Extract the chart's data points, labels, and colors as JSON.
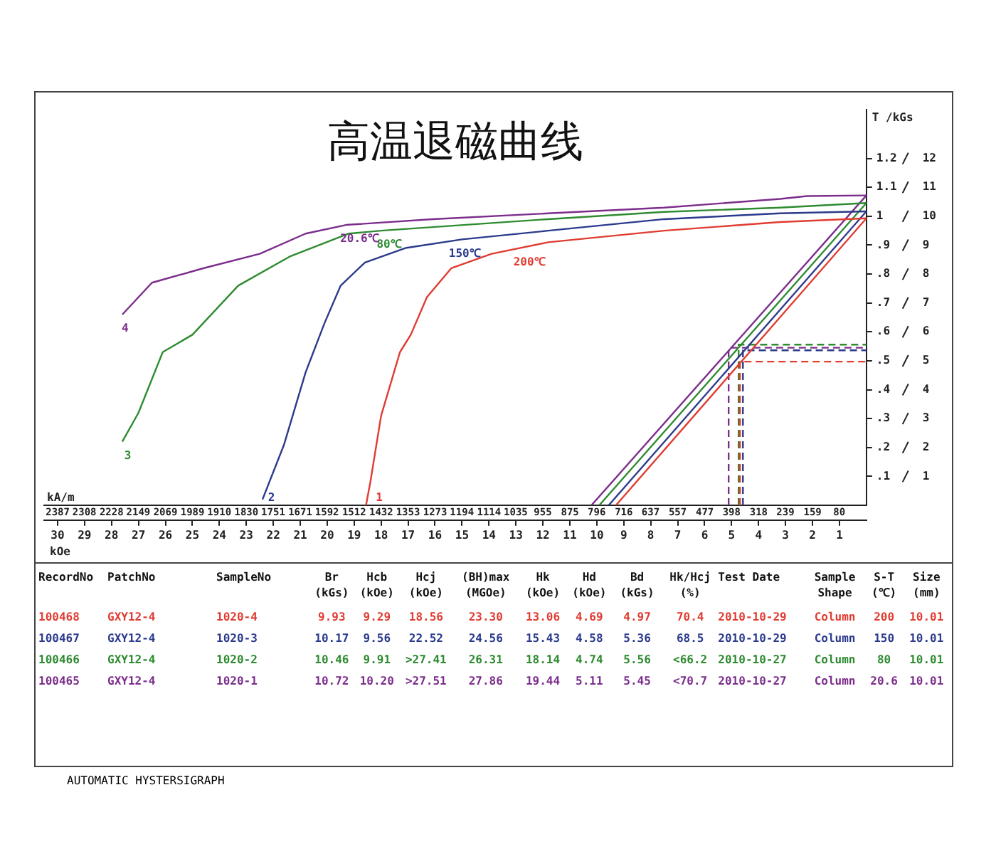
{
  "chart_data": {
    "type": "line",
    "title": "高温退磁曲线",
    "xlabel": "kOe",
    "x2label": "kA/m",
    "ylabel": "T /kGs",
    "xlim": [
      30.5,
      0
    ],
    "xticks": [
      1,
      2,
      3,
      4,
      5,
      6,
      7,
      8,
      9,
      10,
      11,
      12,
      13,
      14,
      15,
      16,
      17,
      18,
      19,
      20,
      21,
      22,
      23,
      24,
      25,
      26,
      27,
      28,
      29,
      30
    ],
    "x2lim": [
      2427,
      0
    ],
    "x2ticks": [
      2387,
      2308,
      2228,
      2149,
      2069,
      1989,
      1910,
      1830,
      1751,
      1671,
      1592,
      1512,
      1432,
      1353,
      1273,
      1194,
      1114,
      1035,
      955,
      875,
      796,
      716,
      637,
      557,
      477,
      398,
      318,
      239,
      159,
      80
    ],
    "ylim": [
      0,
      1.37
    ],
    "yticks": [
      {
        "value": 0.1,
        "label": ".1"
      },
      {
        "value": 0.2,
        "label": ".2"
      },
      {
        "value": 0.3,
        "label": ".3"
      },
      {
        "value": 0.4,
        "label": ".4"
      },
      {
        "value": 0.5,
        "label": ".5"
      },
      {
        "value": 0.6,
        "label": ".6"
      },
      {
        "value": 0.7,
        "label": ".7"
      },
      {
        "value": 0.8,
        "label": ".8"
      },
      {
        "value": 0.9,
        "label": ".9"
      },
      1,
      1.1,
      1.2
    ],
    "y2lim": [
      0,
      13.7
    ],
    "y2ticks": [
      1,
      2,
      3,
      4,
      5,
      6,
      7,
      8,
      9,
      10,
      11,
      12
    ],
    "grid": false,
    "legend": false,
    "marker": "none",
    "line_style": "solid",
    "series": [
      {
        "type": "line",
        "color": "#e03c31",
        "x": [
          0,
          3.2,
          7.5,
          11.8,
          13.9,
          15.4,
          16.3,
          16.9,
          17.3,
          18.0,
          18.4,
          18.56
        ],
        "values": [
          0.993,
          0.98,
          0.95,
          0.91,
          0.87,
          0.82,
          0.72,
          0.59,
          0.53,
          0.31,
          0.08,
          0
        ]
      },
      {
        "type": "line",
        "color": "#2b3a8c",
        "x": [
          0,
          3.2,
          7.5,
          11.8,
          15.0,
          17.1,
          18.6,
          19.5,
          20.1,
          20.8,
          21.6,
          22.4
        ],
        "values": [
          1.017,
          1.01,
          0.99,
          0.95,
          0.92,
          0.89,
          0.84,
          0.76,
          0.63,
          0.46,
          0.21,
          0.02
        ]
      },
      {
        "type": "line",
        "color": "#2e8b30",
        "x": [
          0,
          3.2,
          7.5,
          11.8,
          18.0,
          19.2,
          21.4,
          23.3,
          25.0,
          26.1,
          27.0,
          27.6
        ],
        "values": [
          1.046,
          1.03,
          1.015,
          0.99,
          0.95,
          0.94,
          0.86,
          0.76,
          0.59,
          0.53,
          0.32,
          0.22
        ]
      },
      {
        "type": "line",
        "color": "#7b2d8b",
        "x": [
          0,
          2.2,
          3.2,
          7.5,
          11.8,
          16.1,
          19.3,
          20.8,
          22.5,
          24.6,
          26.5,
          27.6
        ],
        "values": [
          1.072,
          1.07,
          1.06,
          1.03,
          1.01,
          0.99,
          0.97,
          0.94,
          0.87,
          0.82,
          0.77,
          0.66
        ]
      },
      {
        "type": "line",
        "color": "#e03c31",
        "x": [
          0,
          9.29
        ],
        "values": [
          0.993,
          0
        ]
      },
      {
        "type": "line",
        "color": "#2b3a8c",
        "x": [
          0,
          9.56
        ],
        "values": [
          1.017,
          0
        ]
      },
      {
        "type": "line",
        "color": "#2e8b30",
        "x": [
          0,
          9.91
        ],
        "values": [
          1.046,
          0
        ]
      },
      {
        "type": "line",
        "color": "#7b2d8b",
        "x": [
          0,
          10.2
        ],
        "values": [
          1.072,
          0
        ]
      },
      {
        "type": "line",
        "color": "#e03c31",
        "line_style": "dashed",
        "x": [
          4.69,
          4.69,
          0
        ],
        "values": [
          0,
          0.497,
          0.497
        ]
      },
      {
        "type": "line",
        "color": "#2b3a8c",
        "line_style": "dashed",
        "x": [
          4.58,
          4.58,
          0
        ],
        "values": [
          0,
          0.536,
          0.536
        ]
      },
      {
        "type": "line",
        "color": "#2e8b30",
        "line_style": "dashed",
        "x": [
          4.74,
          4.74,
          0
        ],
        "values": [
          0,
          0.556,
          0.556
        ]
      },
      {
        "type": "line",
        "color": "#7b2d8b",
        "line_style": "dashed",
        "x": [
          5.11,
          5.11,
          0
        ],
        "values": [
          0,
          0.545,
          0.545
        ]
      }
    ],
    "annotations": [
      "RecordNo",
      "PatchNo",
      "SampleNo",
      "Br\n(kGs)",
      "Hcb\n(kOe)",
      "Hcj\n(kOe)",
      "(BH)max\n(MGOe)",
      "Hk\n(kOe)",
      "Hd\n(kOe)",
      "Bd\n(kGs)",
      "Hk/Hcj\n(%)",
      "Test Date",
      "Sample\nShape",
      "S-T\n(℃)",
      "Size\n(mm)",
      "100468",
      "GXY12-4",
      "1020-4",
      "9.93",
      "9.29",
      "18.56",
      "23.30",
      "13.06",
      "4.69",
      "4.97",
      "70.4",
      "2010-10-29",
      "Column",
      "200",
      "10.01",
      "100467",
      "GXY12-4",
      "1020-3",
      "10.17",
      "9.56",
      "22.52",
      "24.56",
      "15.43",
      "4.58",
      "5.36",
      "68.5",
      "2010-10-29",
      "Column",
      "150",
      "10.01",
      "100466",
      "GXY12-4",
      "1020-2",
      "10.46",
      "9.91",
      ">27.41",
      "26.31",
      "18.14",
      "4.74",
      "5.56",
      "<66.2",
      "2010-10-27",
      "Column",
      "80",
      "10.01",
      "100465",
      "GXY12-4",
      "1020-1",
      "10.72",
      "10.20",
      ">27.51",
      "27.86",
      "19.44",
      "5.11",
      "5.45",
      "<70.7",
      "2010-10-27",
      "Column",
      "20.6",
      "10.01",
      "AUTOMATIC HYSTERSIGRAPH",
      {
        "text": "200℃",
        "x": 12.5,
        "y": 0.87
      },
      {
        "text": "150℃",
        "x": 14.9,
        "y": 0.9
      },
      {
        "text": "80℃",
        "x": 17.7,
        "y": 0.93
      },
      {
        "text": "20.6℃",
        "x": 18.8,
        "y": 0.95
      },
      {
        "text": "1",
        "x": 18.3,
        "y": 0
      },
      {
        "text": "2",
        "x": 22.3,
        "y": 0
      },
      {
        "text": "3",
        "x": 27.4,
        "y": 0.2
      },
      {
        "text": "4",
        "x": 27.5,
        "y": 0.64
      }
    ]
  }
}
